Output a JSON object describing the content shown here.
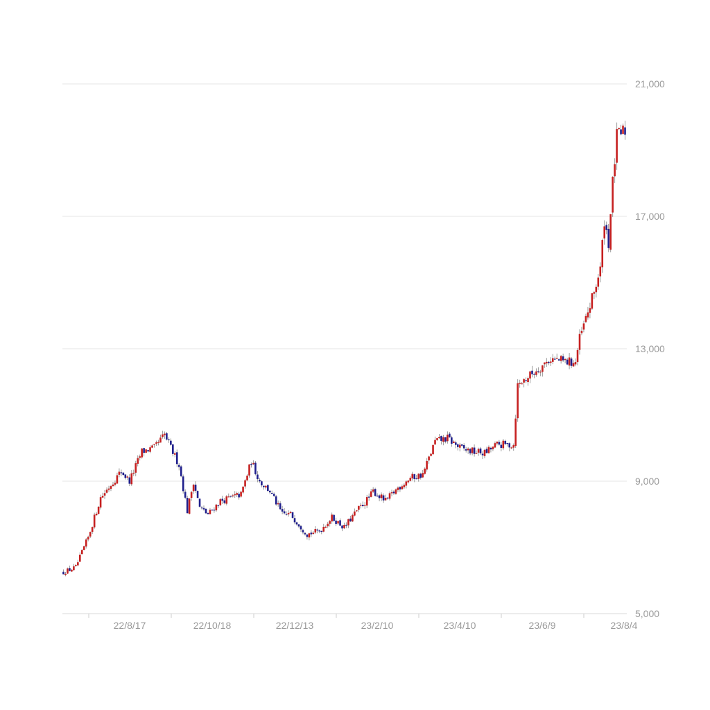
{
  "chart_data": {
    "type": "candlestick",
    "title": "",
    "xlabel": "",
    "ylabel": "",
    "ylim": [
      5000,
      21000
    ],
    "y_ticks": [
      {
        "value": 21000,
        "label": "21,000"
      },
      {
        "value": 17000,
        "label": "17,000"
      },
      {
        "value": 13000,
        "label": "13,000"
      },
      {
        "value": 9000,
        "label": "9,000"
      },
      {
        "value": 5000,
        "label": "5,000"
      }
    ],
    "x_ticks": [
      {
        "index": 18,
        "label": "22/8/17"
      },
      {
        "index": 58,
        "label": "22/10/18"
      },
      {
        "index": 98,
        "label": "22/12/13"
      },
      {
        "index": 138,
        "label": "23/2/10"
      },
      {
        "index": 178,
        "label": "23/4/10"
      },
      {
        "index": 218,
        "label": "23/6/9"
      },
      {
        "index": 258,
        "label": "23/8/4"
      }
    ],
    "colors": {
      "up": "#c62020",
      "down": "#1f1f8c",
      "wick": "#9a9a9a",
      "grid": "#e6e6e6",
      "axis_text": "#9a9a9a"
    },
    "anchors": [
      [
        0,
        6250
      ],
      [
        6,
        6400
      ],
      [
        12,
        7300
      ],
      [
        18,
        8500
      ],
      [
        28,
        9300
      ],
      [
        32,
        9000
      ],
      [
        38,
        9900
      ],
      [
        44,
        10000
      ],
      [
        49,
        10400
      ],
      [
        52,
        10000
      ],
      [
        56,
        9500
      ],
      [
        60,
        8100
      ],
      [
        63,
        9000
      ],
      [
        66,
        8200
      ],
      [
        70,
        8000
      ],
      [
        76,
        8400
      ],
      [
        86,
        8600
      ],
      [
        91,
        9600
      ],
      [
        95,
        9000
      ],
      [
        100,
        8700
      ],
      [
        106,
        8000
      ],
      [
        110,
        8000
      ],
      [
        118,
        7400
      ],
      [
        124,
        7500
      ],
      [
        130,
        7900
      ],
      [
        136,
        7600
      ],
      [
        142,
        8100
      ],
      [
        148,
        8500
      ],
      [
        150,
        8700
      ],
      [
        156,
        8400
      ],
      [
        162,
        8800
      ],
      [
        168,
        9100
      ],
      [
        174,
        9200
      ],
      [
        180,
        10200
      ],
      [
        186,
        10300
      ],
      [
        192,
        10000
      ],
      [
        198,
        9900
      ],
      [
        204,
        9850
      ],
      [
        210,
        10100
      ],
      [
        218,
        10100
      ],
      [
        220,
        11900
      ],
      [
        228,
        12300
      ],
      [
        236,
        12700
      ],
      [
        244,
        12600
      ],
      [
        248,
        12600
      ],
      [
        250,
        13300
      ],
      [
        254,
        14100
      ],
      [
        256,
        14500
      ],
      [
        260,
        15400
      ],
      [
        262,
        16900
      ],
      [
        264,
        16200
      ],
      [
        266,
        18000
      ],
      [
        268,
        19400
      ],
      [
        272,
        19600
      ]
    ]
  }
}
